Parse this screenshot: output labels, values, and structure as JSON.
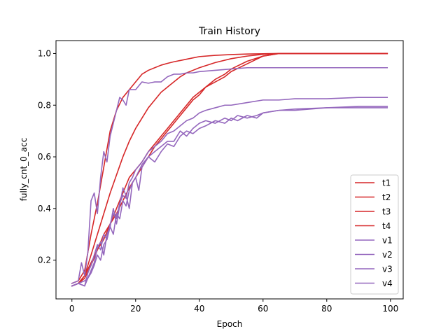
{
  "chart_data": {
    "type": "line",
    "title": "Train History",
    "xlabel": "Epoch",
    "ylabel": "fully_cnt_0_acc",
    "xlim": [
      -5,
      104
    ],
    "ylim": [
      0.05,
      1.05
    ],
    "xticks": [
      0,
      20,
      40,
      60,
      80,
      100
    ],
    "yticks": [
      0.2,
      0.4,
      0.6,
      0.8,
      1.0
    ],
    "xtick_labels": [
      "0",
      "20",
      "40",
      "60",
      "80",
      "100"
    ],
    "ytick_labels": [
      "0.2",
      "0.4",
      "0.6",
      "0.8",
      "1.0"
    ],
    "grid": false,
    "legend_position": "lower-right",
    "series": [
      {
        "name": "t1",
        "color": "#d62728",
        "x": [
          0,
          2,
          4,
          6,
          8,
          10,
          12,
          14,
          16,
          18,
          20,
          22,
          24,
          26,
          28,
          30,
          32,
          34,
          36,
          38,
          40,
          45,
          50,
          55,
          60,
          65,
          70,
          80,
          90,
          99
        ],
        "y": [
          0.11,
          0.12,
          0.16,
          0.3,
          0.42,
          0.56,
          0.7,
          0.78,
          0.83,
          0.86,
          0.89,
          0.92,
          0.935,
          0.945,
          0.955,
          0.962,
          0.968,
          0.973,
          0.978,
          0.983,
          0.988,
          0.993,
          0.996,
          0.998,
          0.999,
          1.0,
          1.0,
          1.0,
          1.0,
          1.0
        ]
      },
      {
        "name": "t2",
        "color": "#d62728",
        "x": [
          0,
          2,
          4,
          6,
          8,
          10,
          12,
          14,
          16,
          18,
          20,
          22,
          24,
          26,
          28,
          30,
          32,
          34,
          36,
          38,
          40,
          45,
          50,
          55,
          60,
          65,
          70,
          80,
          90,
          99
        ],
        "y": [
          0.1,
          0.11,
          0.14,
          0.22,
          0.3,
          0.38,
          0.46,
          0.53,
          0.6,
          0.66,
          0.71,
          0.75,
          0.79,
          0.82,
          0.85,
          0.87,
          0.89,
          0.91,
          0.925,
          0.935,
          0.945,
          0.965,
          0.98,
          0.99,
          0.997,
          1.0,
          1.0,
          1.0,
          1.0,
          1.0
        ]
      },
      {
        "name": "t3",
        "color": "#d62728",
        "x": [
          0,
          2,
          4,
          6,
          8,
          10,
          12,
          14,
          16,
          18,
          20,
          22,
          24,
          26,
          28,
          30,
          32,
          34,
          36,
          38,
          40,
          42,
          45,
          48,
          50,
          55,
          60,
          65,
          70,
          80,
          90,
          99
        ],
        "y": [
          0.1,
          0.11,
          0.13,
          0.18,
          0.24,
          0.3,
          0.34,
          0.4,
          0.46,
          0.52,
          0.55,
          0.58,
          0.62,
          0.65,
          0.68,
          0.71,
          0.74,
          0.77,
          0.8,
          0.83,
          0.85,
          0.87,
          0.9,
          0.92,
          0.94,
          0.97,
          0.99,
          1.0,
          1.0,
          1.0,
          1.0,
          1.0
        ]
      },
      {
        "name": "t4",
        "color": "#d62728",
        "x": [
          0,
          2,
          4,
          6,
          8,
          10,
          12,
          14,
          16,
          18,
          20,
          22,
          24,
          26,
          28,
          30,
          32,
          34,
          36,
          38,
          40,
          42,
          45,
          48,
          50,
          55,
          60,
          65,
          70,
          80,
          90,
          99
        ],
        "y": [
          0.1,
          0.11,
          0.14,
          0.19,
          0.24,
          0.28,
          0.34,
          0.38,
          0.43,
          0.48,
          0.52,
          0.56,
          0.6,
          0.64,
          0.67,
          0.7,
          0.73,
          0.76,
          0.79,
          0.82,
          0.84,
          0.87,
          0.89,
          0.91,
          0.93,
          0.96,
          0.99,
          1.0,
          1.0,
          1.0,
          1.0,
          1.0
        ]
      },
      {
        "name": "v1",
        "color": "#9467bd",
        "x": [
          0,
          2,
          3,
          4,
          5,
          6,
          7,
          8,
          9,
          10,
          11,
          12,
          13,
          14,
          15,
          16,
          17,
          18,
          20,
          22,
          24,
          26,
          28,
          30,
          32,
          34,
          36,
          38,
          40,
          45,
          50,
          55,
          60,
          70,
          80,
          90,
          99
        ],
        "y": [
          0.11,
          0.12,
          0.19,
          0.14,
          0.23,
          0.43,
          0.46,
          0.38,
          0.52,
          0.62,
          0.58,
          0.68,
          0.73,
          0.78,
          0.83,
          0.82,
          0.8,
          0.86,
          0.86,
          0.89,
          0.885,
          0.89,
          0.89,
          0.91,
          0.92,
          0.92,
          0.925,
          0.925,
          0.93,
          0.935,
          0.94,
          0.945,
          0.945,
          0.945,
          0.945,
          0.945,
          0.945
        ]
      },
      {
        "name": "v2",
        "color": "#9467bd",
        "x": [
          0,
          2,
          4,
          5,
          6,
          7,
          8,
          9,
          10,
          11,
          12,
          13,
          14,
          15,
          16,
          17,
          18,
          19,
          20,
          22,
          24,
          26,
          28,
          30,
          32,
          34,
          36,
          38,
          40,
          42,
          45,
          48,
          50,
          55,
          60,
          65,
          70,
          80,
          90,
          99
        ],
        "y": [
          0.1,
          0.11,
          0.1,
          0.15,
          0.18,
          0.22,
          0.26,
          0.24,
          0.3,
          0.28,
          0.34,
          0.38,
          0.36,
          0.42,
          0.45,
          0.44,
          0.5,
          0.52,
          0.55,
          0.58,
          0.62,
          0.64,
          0.66,
          0.69,
          0.7,
          0.72,
          0.74,
          0.75,
          0.77,
          0.78,
          0.79,
          0.8,
          0.8,
          0.81,
          0.82,
          0.82,
          0.825,
          0.825,
          0.83,
          0.83
        ]
      },
      {
        "name": "v3",
        "color": "#9467bd",
        "x": [
          0,
          2,
          4,
          5,
          6,
          7,
          8,
          9,
          10,
          11,
          12,
          13,
          14,
          15,
          16,
          17,
          18,
          19,
          20,
          22,
          24,
          26,
          28,
          30,
          32,
          34,
          36,
          38,
          40,
          42,
          45,
          48,
          50,
          52,
          55,
          58,
          60,
          65,
          70,
          80,
          90,
          99
        ],
        "y": [
          0.1,
          0.11,
          0.12,
          0.13,
          0.15,
          0.18,
          0.22,
          0.2,
          0.26,
          0.28,
          0.33,
          0.3,
          0.38,
          0.36,
          0.43,
          0.41,
          0.47,
          0.5,
          0.52,
          0.57,
          0.6,
          0.62,
          0.64,
          0.66,
          0.66,
          0.7,
          0.68,
          0.71,
          0.73,
          0.74,
          0.73,
          0.75,
          0.74,
          0.76,
          0.75,
          0.76,
          0.77,
          0.78,
          0.78,
          0.79,
          0.79,
          0.79
        ]
      },
      {
        "name": "v4",
        "color": "#9467bd",
        "x": [
          0,
          2,
          4,
          5,
          6,
          7,
          8,
          9,
          10,
          11,
          12,
          13,
          14,
          15,
          16,
          17,
          18,
          19,
          20,
          21,
          22,
          24,
          26,
          28,
          30,
          32,
          34,
          36,
          38,
          40,
          42,
          45,
          48,
          50,
          52,
          55,
          58,
          60,
          65,
          70,
          80,
          90,
          99
        ],
        "y": [
          0.1,
          0.11,
          0.1,
          0.13,
          0.16,
          0.19,
          0.25,
          0.27,
          0.22,
          0.3,
          0.33,
          0.4,
          0.34,
          0.41,
          0.48,
          0.45,
          0.4,
          0.5,
          0.52,
          0.47,
          0.56,
          0.6,
          0.58,
          0.62,
          0.65,
          0.64,
          0.68,
          0.7,
          0.69,
          0.71,
          0.72,
          0.74,
          0.73,
          0.75,
          0.74,
          0.76,
          0.75,
          0.77,
          0.78,
          0.785,
          0.79,
          0.795,
          0.795
        ]
      }
    ]
  }
}
